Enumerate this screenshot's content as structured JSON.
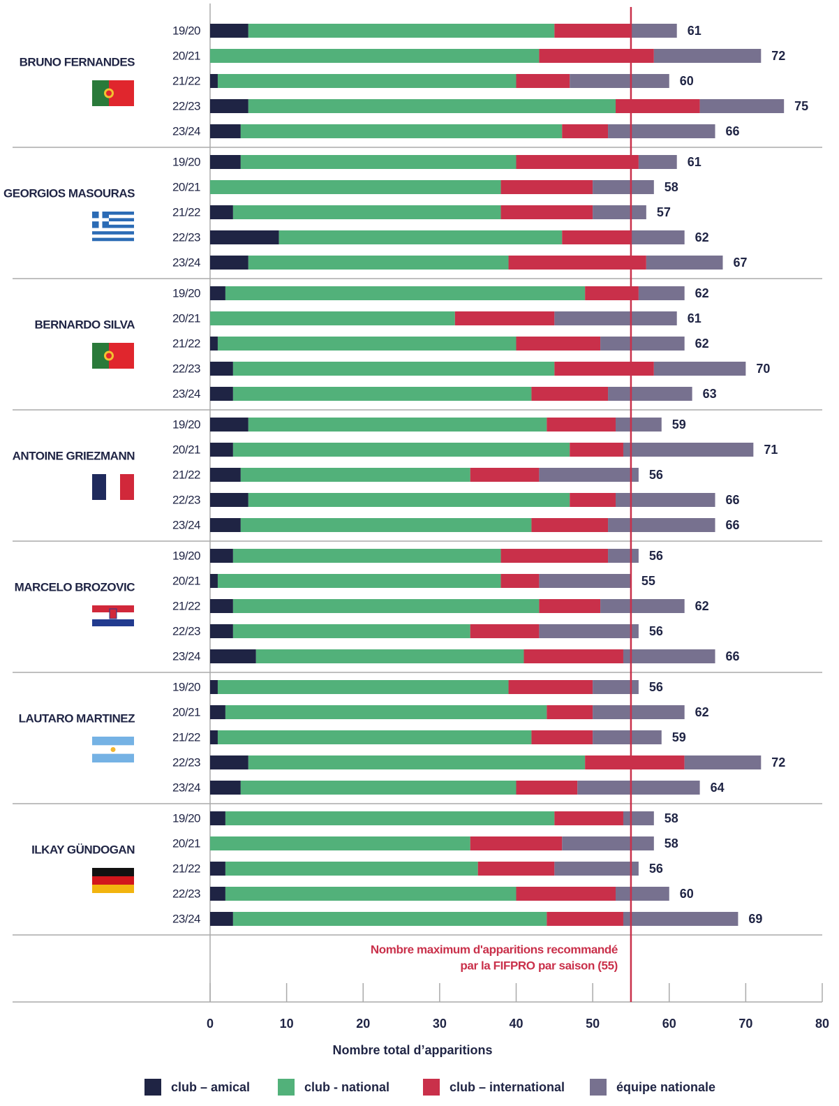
{
  "chart_data": {
    "type": "stacked-bar",
    "orientation": "horizontal",
    "xlabel": "Nombre total d’apparitions",
    "xlim": [
      0,
      80
    ],
    "xticks": [
      0,
      10,
      20,
      30,
      40,
      50,
      60,
      70,
      80
    ],
    "reference_line": {
      "value": 55,
      "color": "#c9304a",
      "label": [
        "Nombre maximum d'apparitions recommandé",
        "par la FIFPRO par saison (55)"
      ]
    },
    "groups": [
      {
        "name": "BRUNO FERNANDES",
        "categories": [
          "19/20",
          "20/21",
          "21/22",
          "22/23",
          "23/24"
        ],
        "totals": [
          61,
          72,
          60,
          75,
          66
        ]
      },
      {
        "name": "GEORGIOS MASOURAS",
        "categories": [
          "19/20",
          "20/21",
          "21/22",
          "22/23",
          "23/24"
        ],
        "totals": [
          61,
          58,
          57,
          62,
          67
        ]
      },
      {
        "name": "BERNARDO SILVA",
        "categories": [
          "19/20",
          "20/21",
          "21/22",
          "22/23",
          "23/24"
        ],
        "totals": [
          62,
          61,
          62,
          70,
          63
        ]
      },
      {
        "name": "ANTOINE GRIEZMANN",
        "categories": [
          "19/20",
          "20/21",
          "21/22",
          "22/23",
          "23/24"
        ],
        "totals": [
          59,
          71,
          56,
          66,
          66
        ]
      },
      {
        "name": "MARCELO BROZOVIC",
        "categories": [
          "19/20",
          "20/21",
          "21/22",
          "22/23",
          "23/24"
        ],
        "totals": [
          56,
          55,
          62,
          56,
          66
        ]
      },
      {
        "name": "LAUTARO MARTINEZ",
        "categories": [
          "19/20",
          "20/21",
          "21/22",
          "22/23",
          "23/24"
        ],
        "totals": [
          56,
          62,
          59,
          72,
          64
        ]
      },
      {
        "name": "ILKAY GÜNDOGAN",
        "categories": [
          "19/20",
          "20/21",
          "21/22",
          "22/23",
          "23/24"
        ],
        "totals": [
          58,
          58,
          56,
          60,
          69
        ]
      }
    ],
    "series": [
      {
        "name": "club – amical",
        "color": "#1f2444",
        "values": [
          [
            5,
            0,
            1,
            5,
            4
          ],
          [
            4,
            0,
            3,
            9,
            5
          ],
          [
            2,
            0,
            1,
            3,
            3
          ],
          [
            5,
            3,
            4,
            5,
            4
          ],
          [
            3,
            1,
            3,
            3,
            6
          ],
          [
            1,
            2,
            1,
            5,
            4
          ],
          [
            2,
            0,
            2,
            2,
            3
          ]
        ]
      },
      {
        "name": "club - national",
        "color": "#52b17a",
        "values": [
          [
            40,
            43,
            39,
            48,
            42
          ],
          [
            36,
            38,
            35,
            37,
            34
          ],
          [
            47,
            32,
            39,
            42,
            39
          ],
          [
            39,
            44,
            30,
            42,
            38
          ],
          [
            35,
            37,
            40,
            31,
            35
          ],
          [
            38,
            42,
            41,
            44,
            36
          ],
          [
            43,
            34,
            33,
            38,
            41
          ]
        ]
      },
      {
        "name": "club – international",
        "color": "#c9304a",
        "values": [
          [
            10,
            15,
            7,
            11,
            6
          ],
          [
            16,
            12,
            12,
            9,
            18
          ],
          [
            7,
            13,
            11,
            13,
            10
          ],
          [
            9,
            7,
            9,
            6,
            10
          ],
          [
            14,
            5,
            8,
            9,
            13
          ],
          [
            11,
            6,
            8,
            13,
            8
          ],
          [
            9,
            12,
            10,
            13,
            10
          ]
        ]
      },
      {
        "name": "équipe nationale",
        "color": "#77718f",
        "values": [
          [
            6,
            14,
            13,
            11,
            14
          ],
          [
            5,
            8,
            7,
            7,
            10
          ],
          [
            6,
            16,
            11,
            12,
            11
          ],
          [
            6,
            17,
            13,
            13,
            14
          ],
          [
            4,
            12,
            11,
            13,
            12
          ],
          [
            6,
            12,
            9,
            10,
            16
          ],
          [
            4,
            12,
            11,
            7,
            15
          ]
        ]
      }
    ]
  }
}
